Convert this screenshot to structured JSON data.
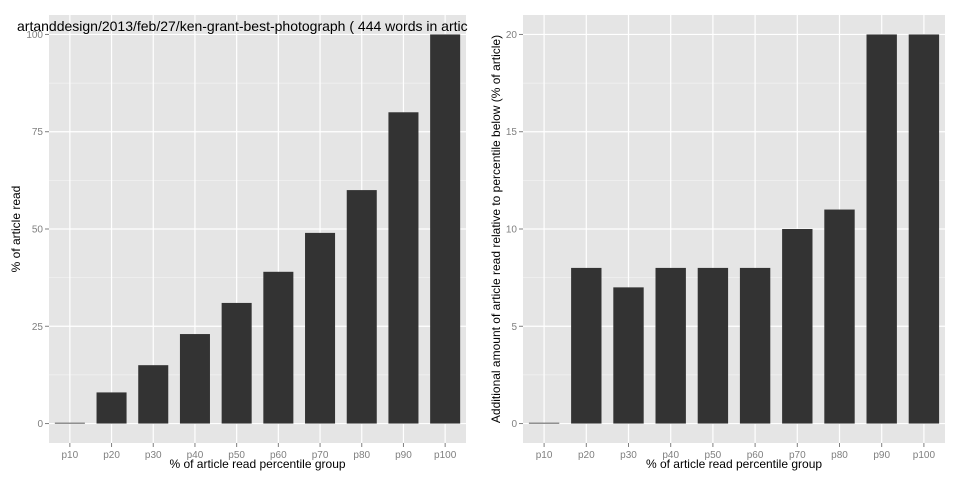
{
  "chart_data": [
    {
      "type": "bar",
      "title": "artanddesign/2013/feb/27/ken-grant-best-photograph ( 444 words in artic",
      "xlabel": "% of article read percentile group",
      "ylabel": "% of article read",
      "categories": [
        "p10",
        "p20",
        "p30",
        "p40",
        "p50",
        "p60",
        "p70",
        "p80",
        "p90",
        "p100"
      ],
      "values": [
        0,
        8,
        15,
        23,
        31,
        39,
        49,
        60,
        80,
        100
      ],
      "yticks": [
        0,
        25,
        50,
        75,
        100
      ],
      "ylim": [
        -5,
        105
      ],
      "grid": true,
      "bar_color": "#333333",
      "panel_color": "#e5e5e5",
      "grid_color": "#ffffff"
    },
    {
      "type": "bar",
      "title": "",
      "xlabel": "% of article read percentile group",
      "ylabel": "Additional amount of article read relative to percentile below (% of article)",
      "categories": [
        "p10",
        "p20",
        "p30",
        "p40",
        "p50",
        "p60",
        "p70",
        "p80",
        "p90",
        "p100"
      ],
      "values": [
        0,
        8,
        7,
        8,
        8,
        8,
        10,
        11,
        20,
        20
      ],
      "yticks": [
        0,
        5,
        10,
        15,
        20
      ],
      "ylim": [
        -1,
        21
      ],
      "grid": true,
      "bar_color": "#333333",
      "panel_color": "#e5e5e5",
      "grid_color": "#ffffff"
    }
  ]
}
